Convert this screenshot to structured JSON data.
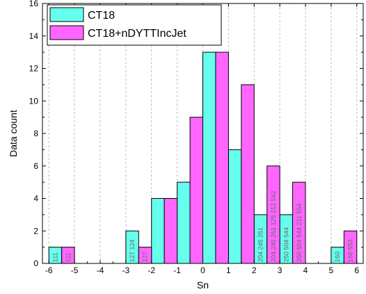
{
  "chart_data": {
    "type": "bar",
    "xlabel": "Sn",
    "ylabel": "Data count",
    "xlim": [
      -6.25,
      6.25
    ],
    "ylim": [
      0,
      16
    ],
    "xticks": [
      -6,
      -5,
      -4,
      -3,
      -2,
      -1,
      0,
      1,
      2,
      3,
      4,
      5,
      6
    ],
    "yticks": [
      0,
      2,
      4,
      6,
      8,
      10,
      12,
      14,
      16
    ],
    "grid": "vertical dashed",
    "legend": "top-left",
    "bin_width": 0.5,
    "series": [
      {
        "name": "CT18",
        "color": "#66ffee",
        "bins": [
          {
            "x0": -6.0,
            "count": 1,
            "labels": [
              "111"
            ]
          },
          {
            "x0": -3.0,
            "count": 2,
            "labels": [
              "127",
              "124"
            ]
          },
          {
            "x0": -2.0,
            "count": 4,
            "labels": []
          },
          {
            "x0": -1.5,
            "count": 0,
            "labels": []
          },
          {
            "x0": -1.0,
            "count": 5,
            "labels": []
          },
          {
            "x0": 0.0,
            "count": 13,
            "labels": []
          },
          {
            "x0": 1.0,
            "count": 7,
            "labels": []
          },
          {
            "x0": 2.0,
            "count": 3,
            "labels": [
              "204",
              "245",
              "261"
            ]
          },
          {
            "x0": 3.0,
            "count": 3,
            "labels": [
              "250",
              "504",
              "544"
            ]
          },
          {
            "x0": 5.0,
            "count": 1,
            "labels": [
              "160"
            ]
          }
        ]
      },
      {
        "name": "CT18+nDYTTIncJet",
        "color": "#ff66ff",
        "bins": [
          {
            "x0": -5.5,
            "count": 1,
            "labels": [
              "111"
            ]
          },
          {
            "x0": -2.5,
            "count": 1,
            "labels": [
              "127"
            ]
          },
          {
            "x0": -1.5,
            "count": 4,
            "labels": []
          },
          {
            "x0": -0.5,
            "count": 9,
            "labels": []
          },
          {
            "x0": 0.5,
            "count": 13,
            "labels": []
          },
          {
            "x0": 1.5,
            "count": 11,
            "labels": []
          },
          {
            "x0": 2.5,
            "count": 6,
            "labels": [
              "204",
              "245",
              "261",
              "125",
              "212",
              "542"
            ]
          },
          {
            "x0": 3.5,
            "count": 5,
            "labels": [
              "250",
              "504",
              "544",
              "211",
              "554"
            ]
          },
          {
            "x0": 5.5,
            "count": 2,
            "labels": [
              "160",
              "553"
            ]
          }
        ]
      }
    ]
  }
}
